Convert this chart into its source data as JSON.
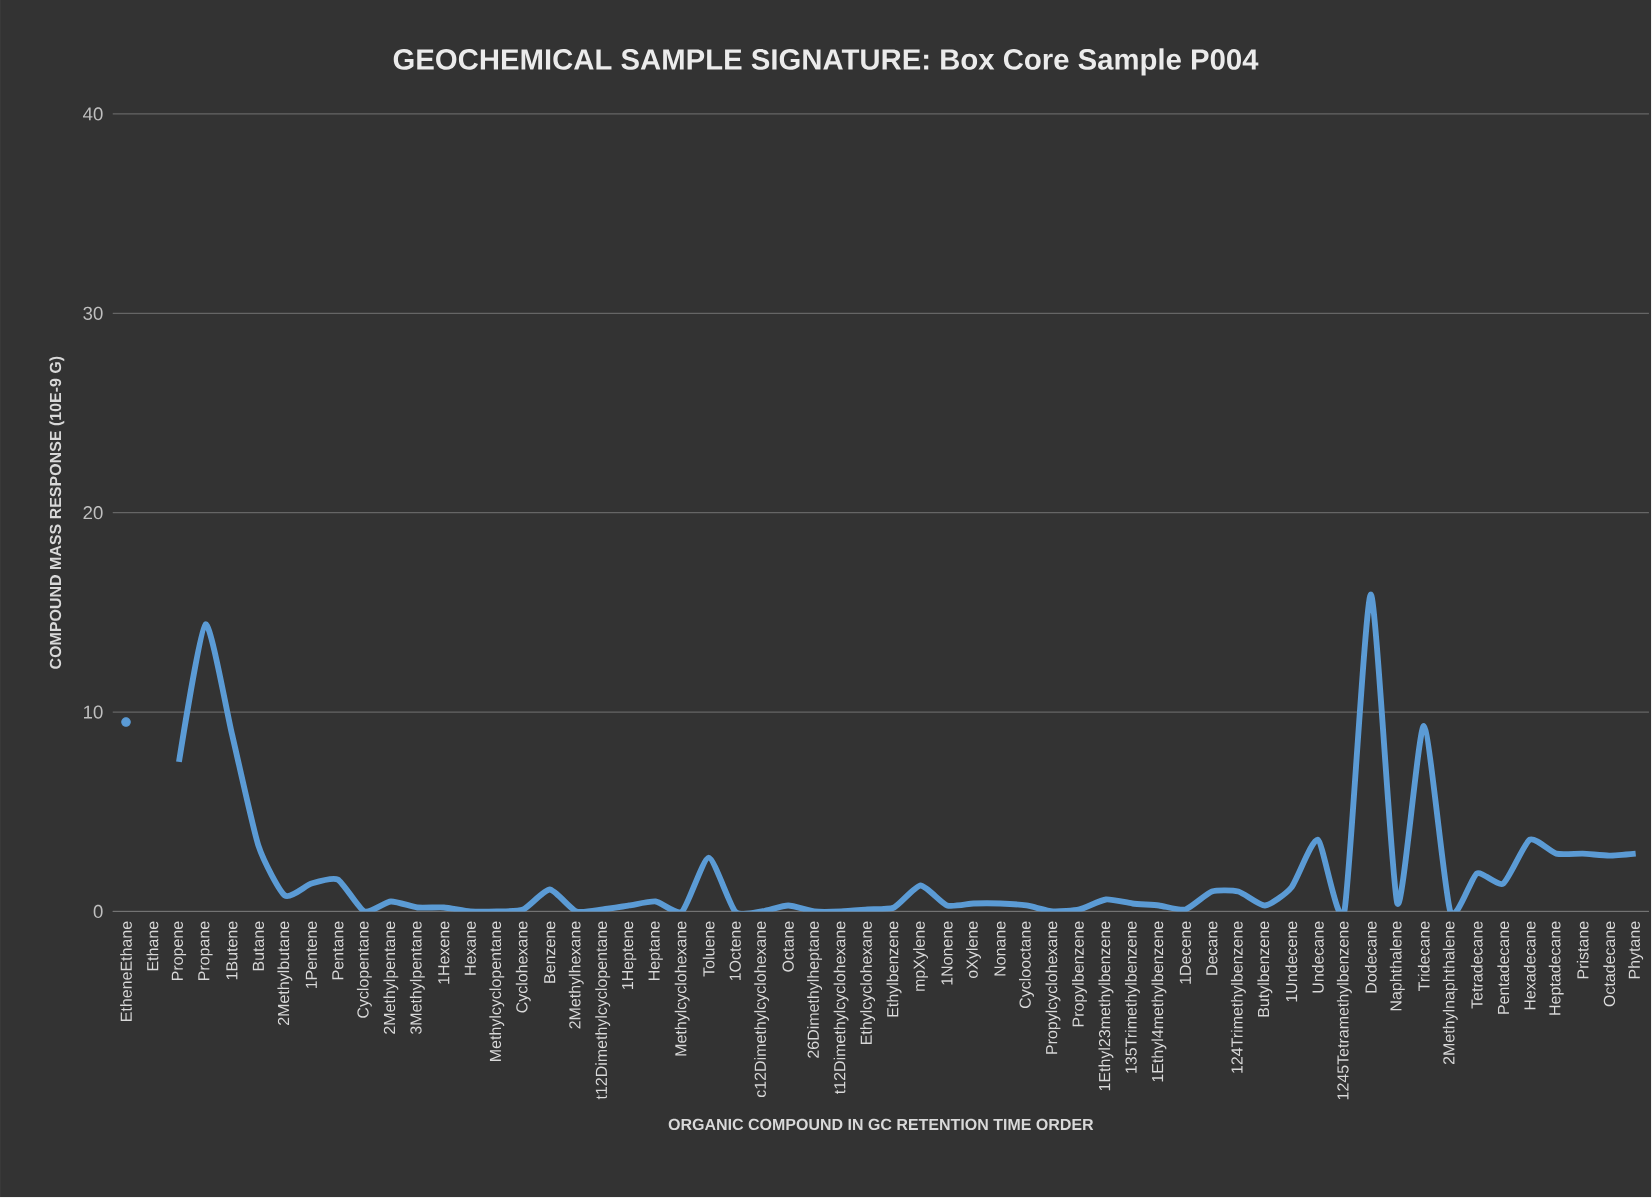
{
  "chart_data": {
    "type": "line",
    "title": "GEOCHEMICAL  SAMPLE  SIGNATURE:  Box Core Sample  P004",
    "xlabel": "ORGANIC COMPOUND IN GC RETENTION TIME ORDER",
    "ylabel": "COMPOUND MASS RESPONSE (10E-9 G)",
    "categories": [
      "EtheneEthane",
      "Ethane",
      "Propene",
      "Propane",
      "1Butene",
      "Butane",
      "2Methylbutane",
      "1Pentene",
      "Pentane",
      "Cyclopentane",
      "2Methylpentane",
      "3Methylpentane",
      "1Hexene",
      "Hexane",
      "Methylcyclopentane",
      "Cyclohexane",
      "Benzene",
      "2Methylhexane",
      "t12Dimethylcyclopentane",
      "1Heptene",
      "Heptane",
      "Methylcyclohexane",
      "Toluene",
      "1Octene",
      "c12Dimethylcyclohexane",
      "Octane",
      "26Dimethylheptane",
      "t12Dimethylcyclohexane",
      "Ethylcyclohexane",
      "Ethylbenzene",
      "mpXylene",
      "1Nonene",
      "oXylene",
      "Nonane",
      "Cyclooctane",
      "Propylcyclohexane",
      "Propylbenzene",
      "1Ethyl23methylbenzene",
      "135Trimethylbenzene",
      "1Ethyl4methylbenzene",
      "1Decene",
      "Decane",
      "124Trimethylbenzene",
      "Butylbenzene",
      "1Undecene",
      "Undecane",
      "1245Tetramethylbenzene",
      "Dodecane",
      "Naphthalene",
      "Tridecane",
      "2Methylnaphthalene",
      "Tetradecane",
      "Pentadecane",
      "Hexadecane",
      "Heptadecane",
      "Pristane",
      "Octadecane",
      "Phytane"
    ],
    "values": [
      9.5,
      null,
      7.5,
      14.4,
      8.9,
      3.3,
      0.8,
      1.4,
      1.6,
      0,
      0.5,
      0.2,
      0.2,
      0,
      0,
      0.1,
      1.1,
      0,
      0.1,
      0.3,
      0.5,
      0,
      2.7,
      0,
      0,
      0.3,
      0,
      0,
      0.1,
      0.2,
      1.3,
      0.3,
      0.4,
      0.4,
      0.3,
      0,
      0.1,
      0.6,
      0.4,
      0.3,
      0.1,
      1.0,
      1.0,
      0.3,
      1.2,
      3.6,
      0,
      15.9,
      0.4,
      9.3,
      0,
      1.9,
      1.4,
      3.6,
      2.9,
      2.9,
      2.8,
      2.9
    ],
    "color": "#5b9bd5",
    "ylim": [
      0,
      40
    ],
    "yticks": [
      0,
      10,
      20,
      30,
      40
    ],
    "grid": "y"
  }
}
